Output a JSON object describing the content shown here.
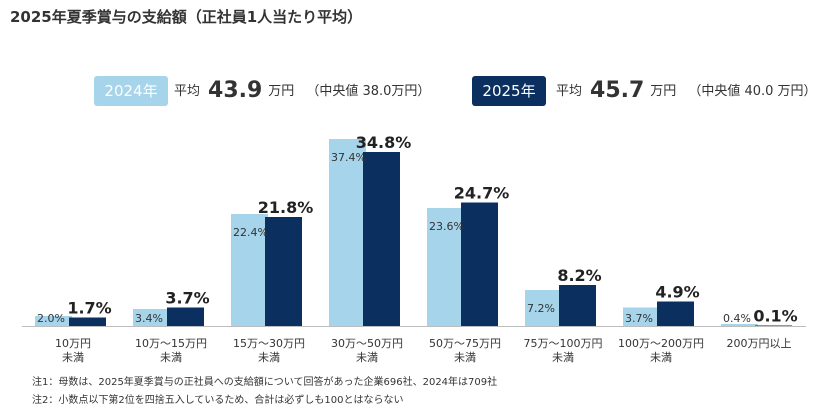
{
  "title": "2025年夏季賞与の支給額（正社員1人当たり平均）",
  "legend": [
    {
      "label": "2024年",
      "avg_prefix": "平均",
      "avg_value": "43.9",
      "avg_unit": "万円",
      "median_text": "（中央値 38.0万円）",
      "color": "#a6d4ea",
      "text_color": "#ffffff"
    },
    {
      "label": "2025年",
      "avg_prefix": "平均",
      "avg_value": "45.7",
      "avg_unit": "万円",
      "median_text": "（中央値 40.0 万円）",
      "color": "#0b2f5e",
      "text_color": "#ffffff"
    }
  ],
  "chart_data": {
    "type": "bar",
    "title": "2025年夏季賞与の支給額（正社員1人当たり平均）",
    "categories": [
      [
        "10万円",
        "未満"
      ],
      [
        "10万～15万円",
        "未満"
      ],
      [
        "15万～30万円",
        "未満"
      ],
      [
        "30万～50万円",
        "未満"
      ],
      [
        "50万～75万円",
        "未満"
      ],
      [
        "75万～100万円",
        "未満"
      ],
      [
        "100万～200万円",
        "未満"
      ],
      [
        "200万円以上"
      ]
    ],
    "series": [
      {
        "name": "2024年",
        "values": [
          2.0,
          3.4,
          22.4,
          37.4,
          23.6,
          7.2,
          3.7,
          0.4
        ],
        "labels": [
          "2.0%",
          "3.4%",
          "22.4%",
          "37.4%",
          "23.6%",
          "7.2%",
          "3.7%",
          "0.4%"
        ],
        "color": "#a6d4ea"
      },
      {
        "name": "2025年",
        "values": [
          1.7,
          3.7,
          21.8,
          34.8,
          24.7,
          8.2,
          4.9,
          0.1
        ],
        "labels": [
          "1.7%",
          "3.7%",
          "21.8%",
          "34.8%",
          "24.7%",
          "8.2%",
          "4.9%",
          "0.1%"
        ],
        "color": "#0b2f5e"
      }
    ],
    "ylim": [
      0,
      40
    ],
    "xlabel": "",
    "ylabel": "",
    "grid": false
  },
  "notes": [
    "注1：母数は、2025年夏季賞与の正社員への支給額について回答があった企業696社、2024年は709社",
    "注2：小数点以下第2位を四捨五入しているため、合計は必ずしも100とはならない"
  ]
}
